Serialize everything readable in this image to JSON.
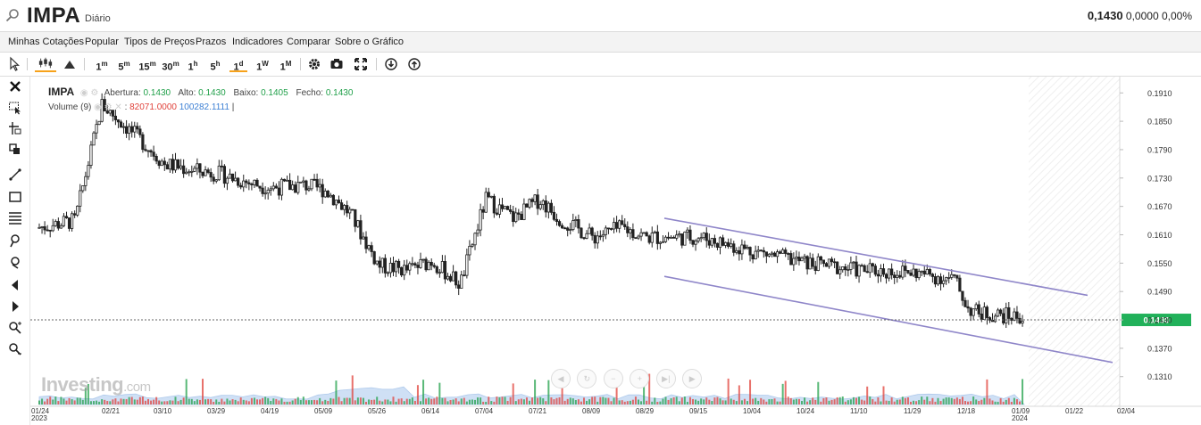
{
  "header": {
    "symbol": "IMPA",
    "period": "Diário",
    "last_price": "0,1430",
    "change": "0,0000",
    "change_pct": "0,00%"
  },
  "menu": [
    "Minhas Cotações",
    "Popular",
    "Tipos de Preços",
    "Prazos",
    "Indicadores",
    "Comparar",
    "Sobre o Gráfico"
  ],
  "toolbar": {
    "intervals": [
      {
        "num": "1",
        "unit": "m"
      },
      {
        "num": "5",
        "unit": "m"
      },
      {
        "num": "15",
        "unit": "m"
      },
      {
        "num": "30",
        "unit": "m"
      },
      {
        "num": "1",
        "unit": "h"
      },
      {
        "num": "5",
        "unit": "h"
      },
      {
        "num": "1",
        "unit": "d"
      },
      {
        "num": "1",
        "unit": "W"
      },
      {
        "num": "1",
        "unit": "M"
      }
    ],
    "active_interval": "1d"
  },
  "legend": {
    "symbol": "IMPA",
    "open_label": "Abertura:",
    "open": "0.1430",
    "high_label": "Alto:",
    "high": "0.1430",
    "low_label": "Baixo:",
    "low": "0.1405",
    "close_label": "Fecho:",
    "close": "0.1430",
    "volume_label": "Volume (9)",
    "volume_value": "82071.0000",
    "volume_ma": "100282.1111",
    "volume_sep": "|"
  },
  "watermark": {
    "brand": "Investing",
    "domain": ".com"
  },
  "colors": {
    "up": "#21a04a",
    "down": "#e0413a",
    "candle": "#222222",
    "channel": "#8f86c9",
    "last_badge": "#21b15a",
    "volume_area": "#a9c8ee"
  },
  "chart_data": {
    "type": "candlestick",
    "y_ticks": [
      "0.1910",
      "0.1850",
      "0.1790",
      "0.1730",
      "0.1670",
      "0.1610",
      "0.1550",
      "0.1490",
      "0.1430",
      "0.1370",
      "0.1310"
    ],
    "ylim": [
      0.1285,
      0.1935
    ],
    "x_ticks": [
      "01/24",
      "02/21",
      "03/10",
      "03/29",
      "04/19",
      "05/09",
      "05/26",
      "06/14",
      "07/04",
      "07/21",
      "08/09",
      "08/29",
      "09/15",
      "10/04",
      "10/24",
      "11/10",
      "11/29",
      "12/18",
      "01/09",
      "01/22",
      "02/04"
    ],
    "x_ticks_year": [
      {
        "tick": "01/24",
        "year": "2023"
      },
      {
        "tick": "01/09",
        "year": "2024"
      }
    ],
    "last_value": "0.1430",
    "last_value_num": 0.143,
    "channel_upper": [
      [
        0.1645,
        "08/29"
      ],
      [
        0.1482,
        "01/22"
      ]
    ],
    "channel_lower": [
      [
        0.1522,
        "08/29"
      ],
      [
        0.134,
        "02/04"
      ]
    ],
    "price_anchors": [
      [
        "01/24",
        0.1625
      ],
      [
        "02/07",
        0.164
      ],
      [
        "02/17",
        0.1885
      ],
      [
        "03/01",
        0.181
      ],
      [
        "03/10",
        0.176
      ],
      [
        "03/22",
        0.1745
      ],
      [
        "03/29",
        0.174
      ],
      [
        "04/10",
        0.172
      ],
      [
        "04/19",
        0.171
      ],
      [
        "05/01",
        0.1715
      ],
      [
        "05/09",
        0.1705
      ],
      [
        "05/17",
        0.1655
      ],
      [
        "05/26",
        0.1545
      ],
      [
        "06/05",
        0.1535
      ],
      [
        "06/14",
        0.1555
      ],
      [
        "06/25",
        0.1505
      ],
      [
        "07/04",
        0.1685
      ],
      [
        "07/13",
        0.1645
      ],
      [
        "07/21",
        0.1685
      ],
      [
        "07/28",
        0.1645
      ],
      [
        "08/09",
        0.1605
      ],
      [
        "08/20",
        0.1625
      ],
      [
        "08/29",
        0.1605
      ],
      [
        "09/15",
        0.1605
      ],
      [
        "10/04",
        0.1575
      ],
      [
        "10/24",
        0.155
      ],
      [
        "11/10",
        0.1535
      ],
      [
        "11/29",
        0.153
      ],
      [
        "12/13",
        0.1515
      ],
      [
        "12/18",
        0.1455
      ],
      [
        "12/27",
        0.1445
      ],
      [
        "01/09",
        0.1435
      ]
    ],
    "grid": false,
    "legend_position": "top-left"
  }
}
